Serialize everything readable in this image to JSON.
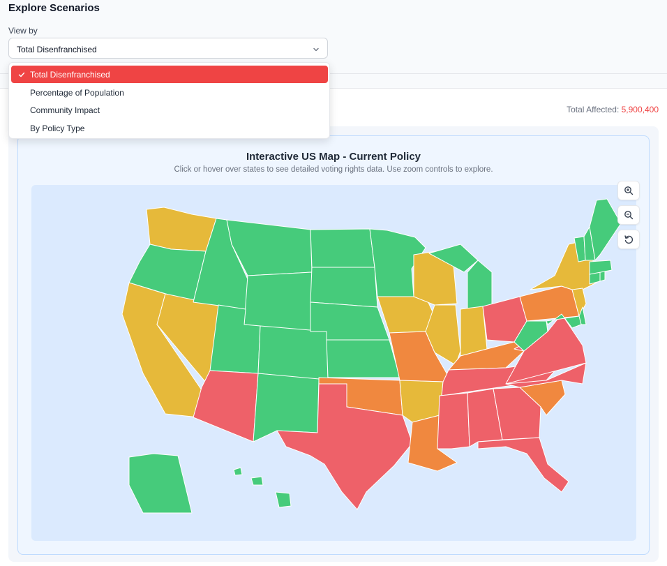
{
  "section": {
    "title": "Explore Scenarios"
  },
  "filter": {
    "label": "View by",
    "selected": "Total Disenfranchised",
    "options": [
      "Total Disenfranchised",
      "Percentage of Population",
      "Community Impact",
      "By Policy Type"
    ]
  },
  "summary": {
    "label": "Total Affected: ",
    "value": "5,900,400"
  },
  "map": {
    "title": "Interactive US Map - Current Policy",
    "subtitle": "Click or hover over states to see detailed voting rights data. Use zoom controls to explore.",
    "controls": [
      "zoom-in-icon",
      "zoom-out-icon",
      "reset-icon"
    ],
    "legend_colors": {
      "low": "#46cb7b",
      "moderate": "#e6b93a",
      "high": "#f0883f",
      "severe": "#ee6169"
    },
    "states": {
      "WA": "moderate",
      "OR": "low",
      "CA": "moderate",
      "NV": "moderate",
      "ID": "low",
      "MT": "low",
      "WY": "low",
      "UT": "low",
      "AZ": "severe",
      "CO": "low",
      "NM": "low",
      "ND": "low",
      "SD": "low",
      "NE": "low",
      "KS": "low",
      "OK": "high",
      "TX": "severe",
      "MN": "low",
      "IA": "moderate",
      "MO": "high",
      "AR": "moderate",
      "LA": "high",
      "WI": "moderate",
      "IL": "moderate",
      "MI": "low",
      "IN": "moderate",
      "OH": "severe",
      "KY": "high",
      "TN": "severe",
      "MS": "severe",
      "AL": "severe",
      "GA": "severe",
      "FL": "severe",
      "SC": "high",
      "NC": "severe",
      "VA": "severe",
      "WV": "low",
      "PA": "high",
      "NY": "moderate",
      "NJ": "moderate",
      "DE": "low",
      "MD": "low",
      "CT": "low",
      "RI": "low",
      "MA": "low",
      "VT": "low",
      "NH": "low",
      "ME": "low",
      "AK": "low",
      "HI": "low"
    }
  }
}
